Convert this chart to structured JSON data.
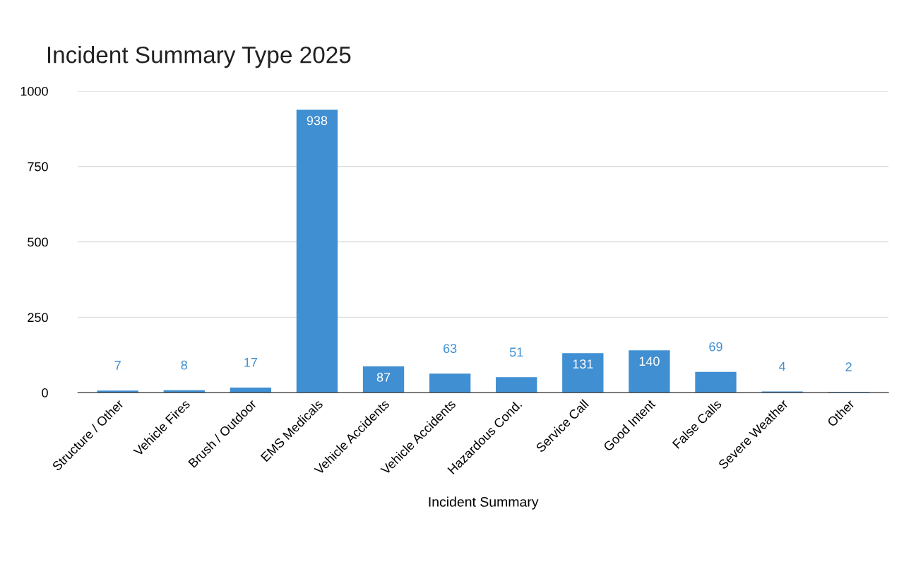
{
  "chart_data": {
    "type": "bar",
    "title": "Incident Summary Type 2025",
    "xlabel": "Incident Summary",
    "categories": [
      "Structure / Other",
      "Vehicle Fires",
      "Brush / Outdoor",
      "EMS Medicals",
      "Vehicle Accidents",
      "Vehicle Accidents",
      "Hazardous Cond.",
      "Service Call",
      "Good Intent",
      "False Calls",
      "Severe Weather",
      "Other"
    ],
    "values": [
      7,
      8,
      17,
      938,
      87,
      63,
      51,
      131,
      140,
      69,
      4,
      2
    ],
    "color": "#3f8fd2",
    "ylim": [
      0,
      1000
    ],
    "yticks": [
      0,
      250,
      500,
      750,
      1000
    ],
    "grid": "y",
    "data_labels": true
  }
}
